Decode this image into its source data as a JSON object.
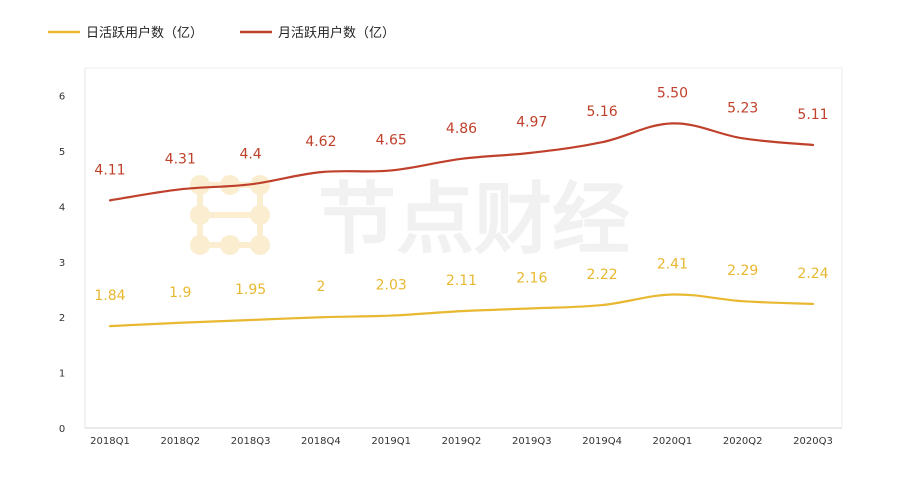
{
  "chart_data": {
    "type": "line",
    "title": "",
    "xlabel": "",
    "ylabel": "",
    "categories": [
      "2018Q1",
      "2018Q2",
      "2018Q3",
      "2018Q4",
      "2019Q1",
      "2019Q2",
      "2019Q3",
      "2019Q4",
      "2020Q1",
      "2020Q2",
      "2020Q3"
    ],
    "y_ticks": [
      "0",
      "1",
      "2",
      "3",
      "4",
      "5",
      "6"
    ],
    "ylim": [
      0,
      6.5
    ],
    "grid": false,
    "legend_position": "top-left",
    "series": [
      {
        "name": "日活跃用户数（亿）",
        "color": "#e8b830",
        "values": [
          1.84,
          1.9,
          1.95,
          2,
          2.03,
          2.11,
          2.16,
          2.22,
          2.41,
          2.29,
          2.24
        ],
        "labels": [
          "1.84",
          "1.9",
          "1.95",
          "2",
          "2.03",
          "2.11",
          "2.16",
          "2.22",
          "2.41",
          "2.29",
          "2.24"
        ]
      },
      {
        "name": "月活跃用户数（亿）",
        "color": "#c0412b",
        "values": [
          4.11,
          4.31,
          4.4,
          4.62,
          4.65,
          4.86,
          4.97,
          5.16,
          5.5,
          5.23,
          5.11
        ],
        "labels": [
          "4.11",
          "4.31",
          "4.4",
          "4.62",
          "4.65",
          "4.86",
          "4.97",
          "5.16",
          "5.50",
          "5.23",
          "5.11"
        ]
      }
    ],
    "watermark": {
      "text": "节点财经",
      "color": "#f1f1f1",
      "logo_color": "#fbeed0"
    }
  }
}
